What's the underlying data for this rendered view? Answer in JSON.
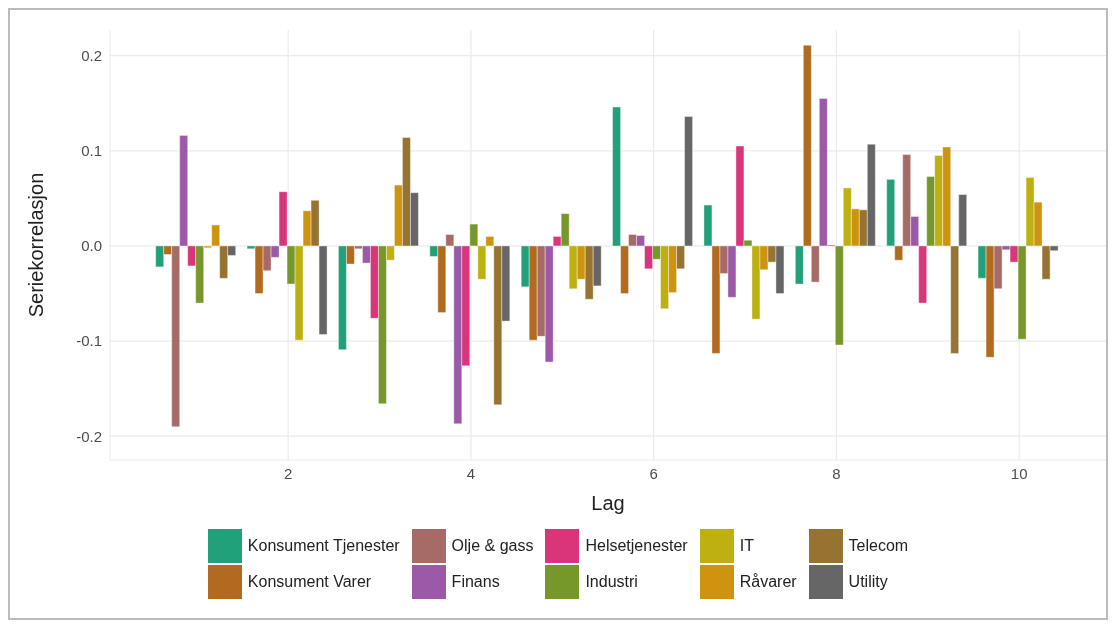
{
  "chart_data": {
    "type": "bar",
    "xlabel": "Lag",
    "ylabel": "Seriekorrelasjon",
    "x": [
      1,
      2,
      3,
      4,
      5,
      6,
      7,
      8,
      9,
      10
    ],
    "xlim": [
      0.05,
      10.95
    ],
    "xticks": [
      2,
      4,
      6,
      8,
      10
    ],
    "ylim": [
      -0.225,
      0.227
    ],
    "yticks": [
      -0.2,
      -0.1,
      {
        "value": 0,
        "label": "0.0"
      },
      0.1,
      0.2
    ],
    "grid": true,
    "legend": "bottom",
    "series": [
      {
        "name": "Konsument Tjenester",
        "color": "#21a07a",
        "values": [
          -0.022,
          -0.003,
          -0.109,
          -0.011,
          -0.043,
          0.146,
          0.043,
          -0.04,
          0.07,
          -0.034
        ]
      },
      {
        "name": "Konsument Varer",
        "color": "#b26b1e",
        "values": [
          -0.009,
          -0.05,
          -0.019,
          -0.07,
          -0.099,
          -0.05,
          -0.113,
          0.211,
          -0.015,
          -0.117
        ]
      },
      {
        "name": "Olje & gass",
        "color": "#a66b67",
        "values": [
          -0.19,
          -0.026,
          -0.003,
          0.012,
          -0.095,
          0.012,
          -0.029,
          -0.038,
          0.096,
          -0.045
        ]
      },
      {
        "name": "Finans",
        "color": "#9b59a8",
        "values": [
          0.116,
          -0.012,
          -0.018,
          -0.187,
          -0.122,
          0.011,
          -0.054,
          0.155,
          0.031,
          -0.004
        ]
      },
      {
        "name": "Helsetjenester",
        "color": "#d9357a",
        "values": [
          -0.021,
          0.057,
          -0.076,
          -0.126,
          0.01,
          -0.024,
          0.105,
          0.001,
          -0.06,
          -0.017
        ]
      },
      {
        "name": "Industri",
        "color": "#76982a",
        "values": [
          -0.06,
          -0.04,
          -0.166,
          0.023,
          0.034,
          -0.014,
          0.006,
          -0.104,
          0.073,
          -0.098
        ]
      },
      {
        "name": "IT",
        "color": "#bdb010",
        "values": [
          -0.002,
          -0.099,
          -0.015,
          -0.035,
          -0.045,
          -0.066,
          -0.077,
          0.061,
          0.095,
          0.072
        ]
      },
      {
        "name": "Råvarer",
        "color": "#ce930f",
        "values": [
          0.022,
          0.037,
          0.064,
          0.01,
          -0.035,
          -0.049,
          -0.025,
          0.039,
          0.104,
          0.046
        ]
      },
      {
        "name": "Telecom",
        "color": "#967330",
        "values": [
          -0.034,
          0.048,
          0.114,
          -0.167,
          -0.056,
          -0.024,
          -0.017,
          0.038,
          -0.113,
          -0.035
        ]
      },
      {
        "name": "Utility",
        "color": "#666666",
        "values": [
          -0.01,
          -0.093,
          0.056,
          -0.079,
          -0.042,
          0.136,
          -0.05,
          0.107,
          0.054,
          -0.005
        ]
      }
    ]
  }
}
